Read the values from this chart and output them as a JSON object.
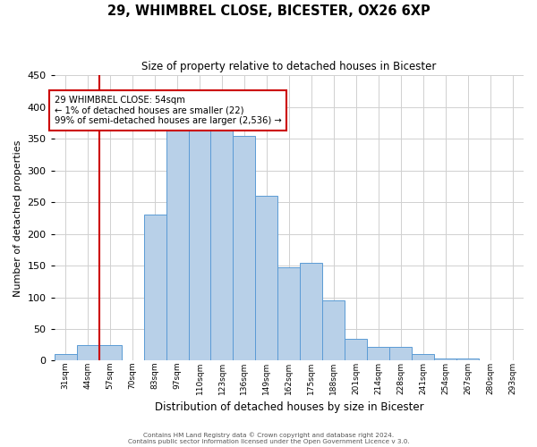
{
  "title": "29, WHIMBREL CLOSE, BICESTER, OX26 6XP",
  "subtitle": "Size of property relative to detached houses in Bicester",
  "xlabel": "Distribution of detached houses by size in Bicester",
  "ylabel": "Number of detached properties",
  "bin_labels": [
    "31sqm",
    "44sqm",
    "57sqm",
    "70sqm",
    "83sqm",
    "97sqm",
    "110sqm",
    "123sqm",
    "136sqm",
    "149sqm",
    "162sqm",
    "175sqm",
    "188sqm",
    "201sqm",
    "214sqm",
    "228sqm",
    "241sqm",
    "254sqm",
    "267sqm",
    "280sqm",
    "293sqm"
  ],
  "bar_heights": [
    10,
    25,
    25,
    0,
    230,
    365,
    370,
    370,
    355,
    260,
    148,
    155,
    95,
    34,
    22,
    22,
    10,
    3,
    3,
    1,
    1
  ],
  "bar_color": "#b8d0e8",
  "bar_edge_color": "#5b9bd5",
  "ylim": [
    0,
    450
  ],
  "yticks": [
    0,
    50,
    100,
    150,
    200,
    250,
    300,
    350,
    400,
    450
  ],
  "property_line_bin_index": 2,
  "annotation_text_line1": "29 WHIMBREL CLOSE: 54sqm",
  "annotation_text_line2": "← 1% of detached houses are smaller (22)",
  "annotation_text_line3": "99% of semi-detached houses are larger (2,536) →",
  "annotation_box_color": "#ffffff",
  "annotation_box_edge": "#cc0000",
  "line_color": "#cc0000",
  "footer1": "Contains HM Land Registry data © Crown copyright and database right 2024.",
  "footer2": "Contains public sector information licensed under the Open Government Licence v 3.0.",
  "background_color": "#ffffff",
  "grid_color": "#d0d0d0"
}
